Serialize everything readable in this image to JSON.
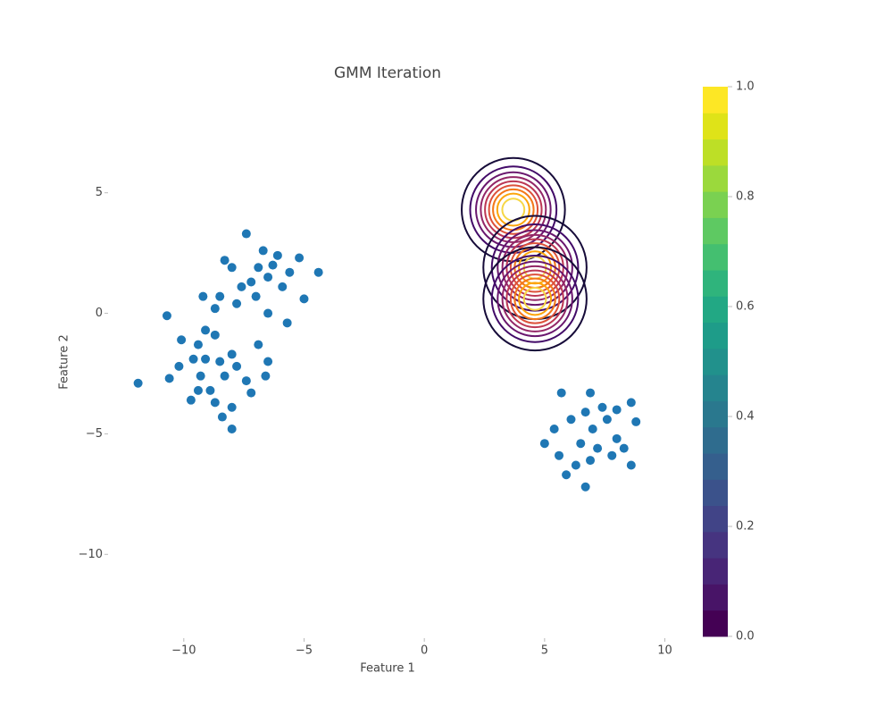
{
  "chart_data": {
    "type": "scatter",
    "title": "GMM Iteration",
    "x_label": "Feature 1",
    "y_label": "Feature 2",
    "color": "#1f77b4",
    "x": [
      -7.4,
      -6.7,
      -6.1,
      -5.2,
      -4.4,
      -5.0,
      -5.7,
      -6.5,
      -8.3,
      -8.0,
      -8.5,
      -9.2,
      -7.6,
      -7.0,
      -6.5,
      -5.9,
      -6.9,
      -6.3,
      -7.2,
      -5.6,
      -7.8,
      -8.7,
      -10.7,
      -9.1,
      -11.9,
      -10.6,
      -10.1,
      -9.4,
      -8.7,
      -8.0,
      -6.9,
      -6.5,
      -6.6,
      -7.2,
      -8.0,
      -8.4,
      -9.7,
      -10.2,
      -9.3,
      -8.9,
      -8.3,
      -7.8,
      -9.1,
      -9.6,
      -8.5,
      -7.4,
      -9.4,
      -8.0,
      -8.7,
      5.7,
      6.9,
      8.6,
      8.8,
      5.0,
      6.7,
      8.6,
      5.6,
      6.1,
      7.0,
      7.6,
      8.0,
      7.2,
      6.5,
      6.9,
      7.8,
      7.4,
      6.3,
      5.4,
      8.3,
      6.7,
      5.9,
      8.0
    ],
    "y": [
      3.3,
      2.6,
      2.4,
      2.3,
      1.7,
      0.6,
      -0.4,
      0.0,
      2.2,
      1.9,
      0.7,
      0.7,
      1.1,
      0.7,
      1.5,
      1.1,
      1.9,
      2.0,
      1.3,
      1.7,
      0.4,
      0.2,
      -0.1,
      -0.7,
      -2.9,
      -2.7,
      -1.1,
      -1.3,
      -0.9,
      -1.7,
      -1.3,
      -2.0,
      -2.6,
      -3.3,
      -4.8,
      -4.3,
      -3.6,
      -2.2,
      -2.6,
      -3.2,
      -2.6,
      -2.2,
      -1.9,
      -1.9,
      -2.0,
      -2.8,
      -3.2,
      -3.9,
      -3.7,
      -3.3,
      -3.3,
      -3.7,
      -4.5,
      -5.4,
      -7.2,
      -6.3,
      -5.9,
      -4.4,
      -4.8,
      -4.4,
      -5.2,
      -5.6,
      -5.4,
      -6.1,
      -5.9,
      -3.9,
      -6.3,
      -4.8,
      -5.6,
      -4.1,
      -6.7,
      -4.0
    ],
    "components": [
      {
        "mean_x": 3.7,
        "mean_y": 4.3,
        "sigma": 1.0
      },
      {
        "mean_x": 4.6,
        "mean_y": 1.9,
        "sigma": 1.0
      },
      {
        "mean_x": 4.6,
        "mean_y": 0.6,
        "sigma": 1.0
      }
    ],
    "contour_levels": [
      0.1,
      0.2,
      0.3,
      0.4,
      0.5,
      0.6,
      0.7,
      0.8,
      0.9
    ],
    "contour_colors": [
      "#160b39",
      "#420a68",
      "#6a176e",
      "#932667",
      "#bc3754",
      "#dd513a",
      "#f37819",
      "#fca50a",
      "#f6d746"
    ],
    "xlim": [
      -13,
      10.5
    ],
    "ylim": [
      -13.4,
      9.4
    ],
    "xticks": [
      {
        "value": -10,
        "label": "−10"
      },
      {
        "value": -5,
        "label": "−5"
      },
      0,
      5,
      10
    ],
    "yticks": [
      {
        "value": -10,
        "label": "−10"
      },
      {
        "value": -5,
        "label": "−5"
      },
      0,
      5
    ],
    "colorbar": {
      "range": [
        0,
        1
      ],
      "ticks": [
        {
          "value": 0,
          "label": "0.0"
        },
        0.2,
        0.4,
        0.6,
        0.8,
        {
          "value": 1,
          "label": "1.0"
        }
      ],
      "colorscale": [
        "#440154",
        "#481467",
        "#482576",
        "#463480",
        "#414487",
        "#3b528b",
        "#355f8d",
        "#2f6c8e",
        "#2a788e",
        "#25848e",
        "#21918c",
        "#1e9c89",
        "#22a884",
        "#2fb47c",
        "#44bf70",
        "#5ec962",
        "#7ad151",
        "#9bd93c",
        "#bddf26",
        "#dfe318",
        "#fde725"
      ]
    }
  }
}
